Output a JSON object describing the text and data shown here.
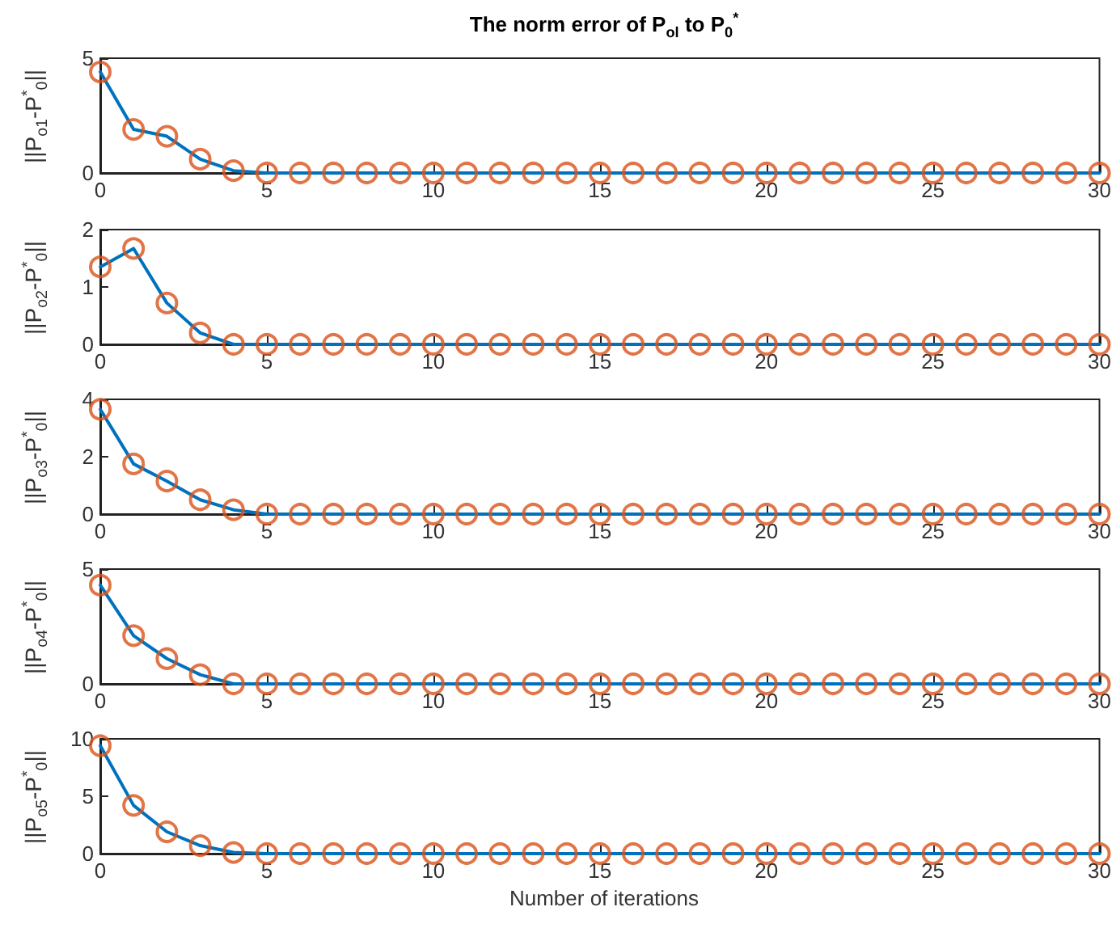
{
  "chart_data": [
    {
      "type": "line",
      "title": "The norm error of P$_{ol}$ to P$_{0}$$^{*}$",
      "ylabel": "||P$_{o1}$-P$^{*}$$_{0}$||",
      "x": [
        0,
        1,
        2,
        3,
        4,
        5,
        6,
        7,
        8,
        9,
        10,
        11,
        12,
        13,
        14,
        15,
        16,
        17,
        18,
        19,
        20,
        21,
        22,
        23,
        24,
        25,
        26,
        27,
        28,
        29,
        30
      ],
      "xlim": [
        0,
        30
      ],
      "xticks": [
        0,
        5,
        10,
        15,
        20,
        25,
        30
      ],
      "ylim": [
        0,
        5
      ],
      "yticks": [
        0,
        5
      ],
      "grid": false,
      "series": [
        {
          "marker": "none",
          "color": "#0072bd",
          "values": [
            4.4,
            1.9,
            1.6,
            0.6,
            0.1,
            0,
            0,
            0,
            0,
            0,
            0,
            0,
            0,
            0,
            0,
            0,
            0,
            0,
            0,
            0,
            0,
            0,
            0,
            0,
            0,
            0,
            0,
            0,
            0,
            0,
            0
          ]
        },
        {
          "type": "scatter",
          "marker": "circle",
          "color": "#d95319",
          "values": [
            4.4,
            1.9,
            1.6,
            0.6,
            0.1,
            0,
            0,
            0,
            0,
            0,
            0,
            0,
            0,
            0,
            0,
            0,
            0,
            0,
            0,
            0,
            0,
            0,
            0,
            0,
            0,
            0,
            0,
            0,
            0,
            0,
            0
          ]
        }
      ]
    },
    {
      "type": "line",
      "ylabel": "||P$_{o2}$-P$^{*}$$_{0}$||",
      "x": [
        0,
        1,
        2,
        3,
        4,
        5,
        6,
        7,
        8,
        9,
        10,
        11,
        12,
        13,
        14,
        15,
        16,
        17,
        18,
        19,
        20,
        21,
        22,
        23,
        24,
        25,
        26,
        27,
        28,
        29,
        30
      ],
      "xlim": [
        0,
        30
      ],
      "xticks": [
        0,
        5,
        10,
        15,
        20,
        25,
        30
      ],
      "ylim": [
        0,
        2
      ],
      "yticks": [
        0,
        1,
        2
      ],
      "grid": false,
      "series": [
        {
          "marker": "none",
          "color": "#0072bd",
          "values": [
            1.35,
            1.67,
            0.72,
            0.2,
            0,
            0,
            0,
            0,
            0,
            0,
            0,
            0,
            0,
            0,
            0,
            0,
            0,
            0,
            0,
            0,
            0,
            0,
            0,
            0,
            0,
            0,
            0,
            0,
            0,
            0,
            0
          ]
        },
        {
          "type": "scatter",
          "marker": "circle",
          "color": "#d95319",
          "values": [
            1.35,
            1.67,
            0.72,
            0.2,
            0,
            0,
            0,
            0,
            0,
            0,
            0,
            0,
            0,
            0,
            0,
            0,
            0,
            0,
            0,
            0,
            0,
            0,
            0,
            0,
            0,
            0,
            0,
            0,
            0,
            0,
            0
          ]
        }
      ]
    },
    {
      "type": "line",
      "ylabel": "||P$_{o3}$-P$^{*}$$_{0}$||",
      "x": [
        0,
        1,
        2,
        3,
        4,
        5,
        6,
        7,
        8,
        9,
        10,
        11,
        12,
        13,
        14,
        15,
        16,
        17,
        18,
        19,
        20,
        21,
        22,
        23,
        24,
        25,
        26,
        27,
        28,
        29,
        30
      ],
      "xlim": [
        0,
        30
      ],
      "xticks": [
        0,
        5,
        10,
        15,
        20,
        25,
        30
      ],
      "ylim": [
        0,
        4
      ],
      "yticks": [
        0,
        2,
        4
      ],
      "grid": false,
      "series": [
        {
          "marker": "none",
          "color": "#0072bd",
          "values": [
            3.65,
            1.75,
            1.15,
            0.5,
            0.15,
            0,
            0,
            0,
            0,
            0,
            0,
            0,
            0,
            0,
            0,
            0,
            0,
            0,
            0,
            0,
            0,
            0,
            0,
            0,
            0,
            0,
            0,
            0,
            0,
            0,
            0
          ]
        },
        {
          "type": "scatter",
          "marker": "circle",
          "color": "#d95319",
          "values": [
            3.65,
            1.75,
            1.15,
            0.5,
            0.15,
            0,
            0,
            0,
            0,
            0,
            0,
            0,
            0,
            0,
            0,
            0,
            0,
            0,
            0,
            0,
            0,
            0,
            0,
            0,
            0,
            0,
            0,
            0,
            0,
            0,
            0
          ]
        }
      ]
    },
    {
      "type": "line",
      "ylabel": "||P$_{o4}$-P$^{*}$$_{0}$||",
      "x": [
        0,
        1,
        2,
        3,
        4,
        5,
        6,
        7,
        8,
        9,
        10,
        11,
        12,
        13,
        14,
        15,
        16,
        17,
        18,
        19,
        20,
        21,
        22,
        23,
        24,
        25,
        26,
        27,
        28,
        29,
        30
      ],
      "xlim": [
        0,
        30
      ],
      "xticks": [
        0,
        5,
        10,
        15,
        20,
        25,
        30
      ],
      "ylim": [
        0,
        5
      ],
      "yticks": [
        0,
        5
      ],
      "grid": false,
      "series": [
        {
          "marker": "none",
          "color": "#0072bd",
          "values": [
            4.3,
            2.1,
            1.1,
            0.4,
            0,
            0,
            0,
            0,
            0,
            0,
            0,
            0,
            0,
            0,
            0,
            0,
            0,
            0,
            0,
            0,
            0,
            0,
            0,
            0,
            0,
            0,
            0,
            0,
            0,
            0,
            0
          ]
        },
        {
          "type": "scatter",
          "marker": "circle",
          "color": "#d95319",
          "values": [
            4.3,
            2.1,
            1.1,
            0.4,
            0,
            0,
            0,
            0,
            0,
            0,
            0,
            0,
            0,
            0,
            0,
            0,
            0,
            0,
            0,
            0,
            0,
            0,
            0,
            0,
            0,
            0,
            0,
            0,
            0,
            0,
            0
          ]
        }
      ]
    },
    {
      "type": "line",
      "ylabel": "||P$_{o5}$-P$^{*}$$_{0}$||",
      "xlabel": "Number of iterations",
      "x": [
        0,
        1,
        2,
        3,
        4,
        5,
        6,
        7,
        8,
        9,
        10,
        11,
        12,
        13,
        14,
        15,
        16,
        17,
        18,
        19,
        20,
        21,
        22,
        23,
        24,
        25,
        26,
        27,
        28,
        29,
        30
      ],
      "xlim": [
        0,
        30
      ],
      "xticks": [
        0,
        5,
        10,
        15,
        20,
        25,
        30
      ],
      "ylim": [
        0,
        10
      ],
      "yticks": [
        0,
        5,
        10
      ],
      "grid": false,
      "series": [
        {
          "marker": "none",
          "color": "#0072bd",
          "values": [
            9.4,
            4.2,
            1.9,
            0.7,
            0.1,
            0,
            0,
            0,
            0,
            0,
            0,
            0,
            0,
            0,
            0,
            0,
            0,
            0,
            0,
            0,
            0,
            0,
            0,
            0,
            0,
            0,
            0,
            0,
            0,
            0,
            0
          ]
        },
        {
          "type": "scatter",
          "marker": "circle",
          "color": "#d95319",
          "values": [
            9.4,
            4.2,
            1.9,
            0.7,
            0.1,
            0,
            0,
            0,
            0,
            0,
            0,
            0,
            0,
            0,
            0,
            0,
            0,
            0,
            0,
            0,
            0,
            0,
            0,
            0,
            0,
            0,
            0,
            0,
            0,
            0,
            0
          ]
        }
      ]
    }
  ]
}
